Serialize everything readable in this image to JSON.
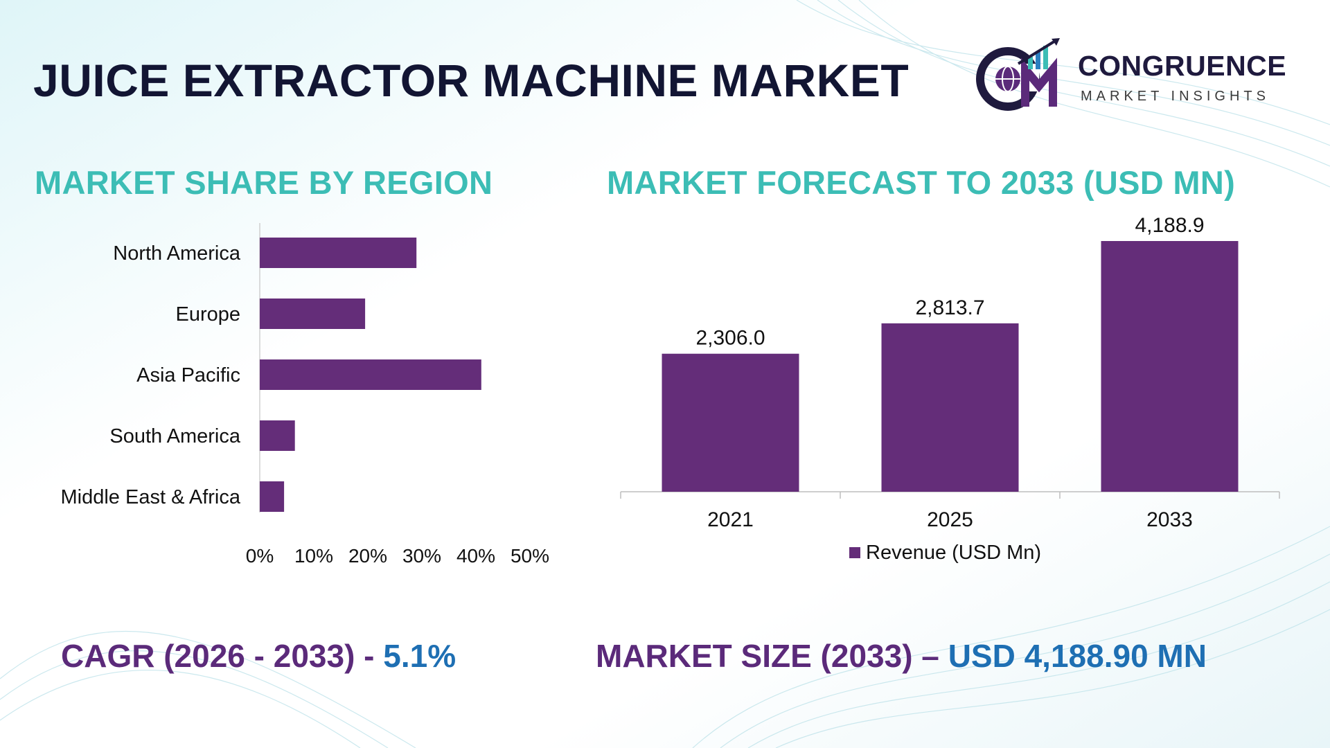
{
  "page": {
    "title": "JUICE EXTRACTOR MACHINE MARKET",
    "colors": {
      "title": "#121533",
      "section_title": "#3cbdb5",
      "bar": "#642d79",
      "stat_label": "#5b2a7a",
      "stat_value": "#1e6fb3"
    }
  },
  "logo": {
    "name": "CONGRUENCE",
    "tagline": "MARKET INSIGHTS",
    "icon": "cmi-globe-chart-logo"
  },
  "region_chart": {
    "heading": "MARKET SHARE BY REGION"
  },
  "forecast_chart": {
    "heading": "MARKET FORECAST TO 2033 (USD MN)"
  },
  "stats": {
    "cagr_label": "CAGR (2026 - 2033) - ",
    "cagr_value": "5.1%",
    "size_label": "MARKET SIZE (2033) – ",
    "size_value": "USD 4,188.90 MN"
  },
  "chart_data": [
    {
      "type": "bar",
      "orientation": "horizontal",
      "title": "MARKET SHARE BY REGION",
      "categories": [
        "North America",
        "Europe",
        "Asia Pacific",
        "South America",
        "Middle East & Africa"
      ],
      "values": [
        29,
        19.5,
        41,
        6.5,
        4.5
      ],
      "unit": "%",
      "xlim": [
        0,
        50
      ],
      "xticks": [
        "0%",
        "10%",
        "20%",
        "30%",
        "40%",
        "50%"
      ],
      "grid": false,
      "color": "#642d79"
    },
    {
      "type": "bar",
      "orientation": "vertical",
      "title": "MARKET FORECAST TO 2033 (USD MN)",
      "categories": [
        "2021",
        "2025",
        "2033"
      ],
      "series": [
        {
          "name": "Revenue (USD Mn)",
          "values": [
            2306.0,
            2813.7,
            4188.9
          ]
        }
      ],
      "data_labels": [
        "2,306.0",
        "2,813.7",
        "4,188.9"
      ],
      "legend": "bottom",
      "grid": false,
      "color": "#642d79"
    }
  ]
}
